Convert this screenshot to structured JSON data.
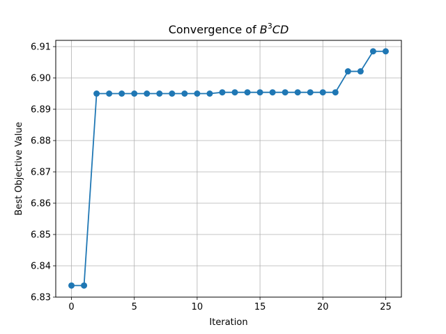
{
  "chart_data": {
    "type": "line",
    "title": "Convergence of ",
    "title_math": {
      "base": "B",
      "sup": "3",
      "rest": "CD"
    },
    "xlabel": "Iteration",
    "ylabel": "Best Objective Value",
    "xlim": [
      -1.25,
      26.25
    ],
    "ylim": [
      6.83,
      6.912
    ],
    "xticks": [
      0,
      5,
      10,
      15,
      20,
      25
    ],
    "yticks": [
      6.83,
      6.84,
      6.85,
      6.86,
      6.87,
      6.88,
      6.89,
      6.9,
      6.91
    ],
    "ytick_labels": [
      "6.83",
      "6.84",
      "6.85",
      "6.86",
      "6.87",
      "6.88",
      "6.89",
      "6.90",
      "6.91"
    ],
    "grid": true,
    "marker": "circle",
    "series": [
      {
        "color": "#1f77b4",
        "x": [
          0,
          1,
          2,
          3,
          4,
          5,
          6,
          7,
          8,
          9,
          10,
          11,
          12,
          13,
          14,
          15,
          16,
          17,
          18,
          19,
          20,
          21,
          22,
          23,
          24,
          25
        ],
        "y": [
          6.8337,
          6.8337,
          6.895,
          6.895,
          6.895,
          6.895,
          6.895,
          6.895,
          6.895,
          6.895,
          6.895,
          6.895,
          6.8954,
          6.8954,
          6.8954,
          6.8954,
          6.8954,
          6.8954,
          6.8954,
          6.8954,
          6.8954,
          6.8954,
          6.9021,
          6.9021,
          6.9085,
          6.9085
        ]
      }
    ]
  }
}
